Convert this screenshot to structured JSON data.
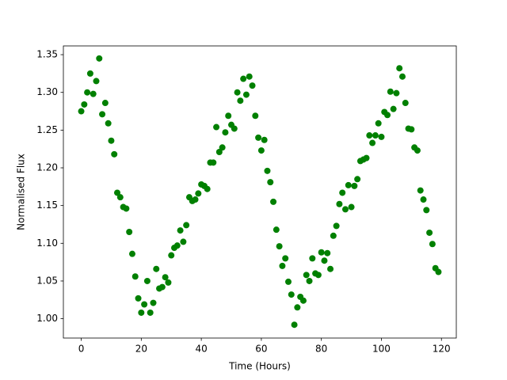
{
  "chart_data": {
    "type": "scatter",
    "x_label": "Time (Hours)",
    "y_label": "Normalised Flux",
    "color": "#008000",
    "x": [
      0,
      1,
      2,
      3,
      4,
      5,
      6,
      7,
      8,
      9,
      10,
      11,
      12,
      13,
      14,
      15,
      16,
      17,
      18,
      19,
      20,
      21,
      22,
      23,
      24,
      25,
      26,
      27,
      28,
      29,
      30,
      31,
      32,
      33,
      34,
      35,
      36,
      37,
      38,
      39,
      40,
      41,
      42,
      43,
      44,
      45,
      46,
      47,
      48,
      49,
      50,
      51,
      52,
      53,
      54,
      55,
      56,
      57,
      58,
      59,
      60,
      61,
      62,
      63,
      64,
      65,
      66,
      67,
      68,
      69,
      70,
      71,
      72,
      73,
      74,
      75,
      76,
      77,
      78,
      79,
      80,
      81,
      82,
      83,
      84,
      85,
      86,
      87,
      88,
      89,
      90,
      91,
      92,
      93,
      94,
      95,
      96,
      97,
      98,
      99,
      100,
      101,
      102,
      103,
      104,
      105,
      106,
      107,
      108,
      109,
      110,
      111,
      112,
      113,
      114,
      115,
      116,
      117,
      118,
      119
    ],
    "values": [
      1.275,
      1.284,
      1.3,
      1.325,
      1.298,
      1.315,
      1.345,
      1.271,
      1.286,
      1.259,
      1.236,
      1.218,
      1.167,
      1.161,
      1.148,
      1.146,
      1.115,
      1.086,
      1.056,
      1.027,
      1.008,
      1.019,
      1.05,
      1.008,
      1.021,
      1.066,
      1.04,
      1.042,
      1.055,
      1.048,
      1.084,
      1.094,
      1.097,
      1.117,
      1.102,
      1.124,
      1.161,
      1.156,
      1.158,
      1.166,
      1.178,
      1.176,
      1.172,
      1.207,
      1.207,
      1.254,
      1.221,
      1.227,
      1.247,
      1.269,
      1.257,
      1.252,
      1.3,
      1.289,
      1.318,
      1.297,
      1.321,
      1.309,
      1.269,
      1.24,
      1.223,
      1.237,
      1.196,
      1.181,
      1.155,
      1.118,
      1.096,
      1.07,
      1.08,
      1.049,
      1.032,
      0.992,
      1.015,
      1.029,
      1.024,
      1.058,
      1.05,
      1.08,
      1.06,
      1.058,
      1.088,
      1.077,
      1.087,
      1.066,
      1.11,
      1.123,
      1.152,
      1.167,
      1.145,
      1.177,
      1.148,
      1.176,
      1.185,
      1.209,
      1.211,
      1.213,
      1.243,
      1.233,
      1.243,
      1.259,
      1.241,
      1.274,
      1.27,
      1.301,
      1.278,
      1.299,
      1.332,
      1.321,
      1.286,
      1.252,
      1.251,
      1.227,
      1.223,
      1.17,
      1.158,
      1.144,
      1.114,
      1.099,
      1.067,
      1.062
    ],
    "xlim": [
      -5.95,
      124.95
    ],
    "xticks": [
      0,
      20,
      40,
      60,
      80,
      100,
      120
    ],
    "ylim": [
      0.9744,
      1.3616
    ],
    "yticks": [
      {
        "value": 1,
        "label": "1.00"
      },
      1.05,
      {
        "value": 1.1,
        "label": "1.10"
      },
      1.15,
      {
        "value": 1.2,
        "label": "1.20"
      },
      1.25,
      {
        "value": 1.3,
        "label": "1.30"
      },
      1.35
    ]
  }
}
